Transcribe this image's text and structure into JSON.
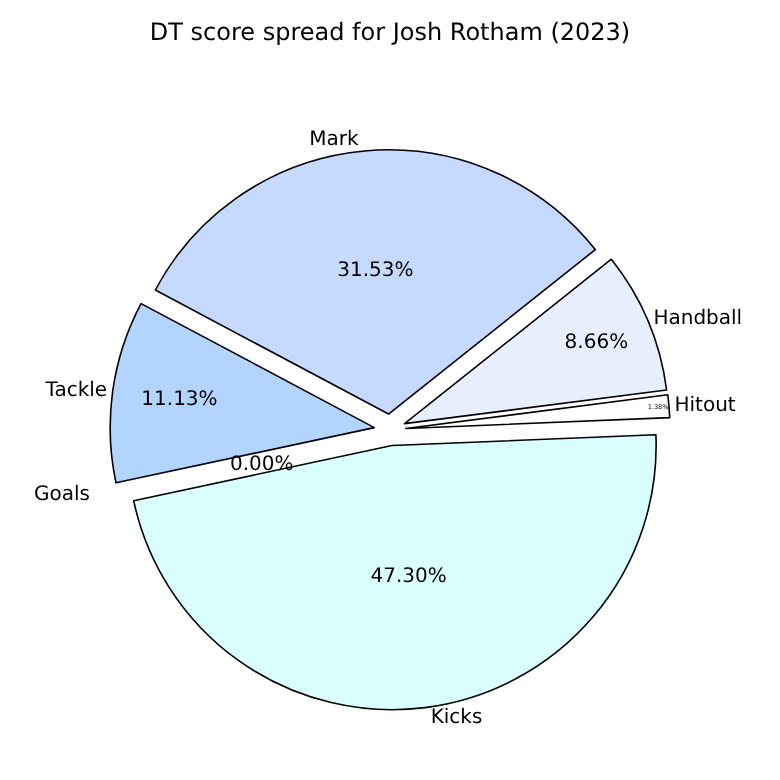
{
  "chart_data": {
    "type": "pie",
    "title": "DT score spread for Josh Rotham (2023)",
    "categories": [
      "Mark",
      "Handball",
      "Hitout",
      "Kicks",
      "Goals",
      "Tackle"
    ],
    "values": [
      31.53,
      8.66,
      1.38,
      47.3,
      0.0,
      11.13
    ],
    "colors": [
      "#c6d9ff",
      "#e8efff",
      "#ffffff",
      "#d9ffff",
      null,
      "#b3d4ff"
    ],
    "value_labels": [
      "31.53%",
      "8.66%",
      "1.38%",
      "47.30%",
      "0.00%",
      "11.13%"
    ],
    "legend": false
  }
}
